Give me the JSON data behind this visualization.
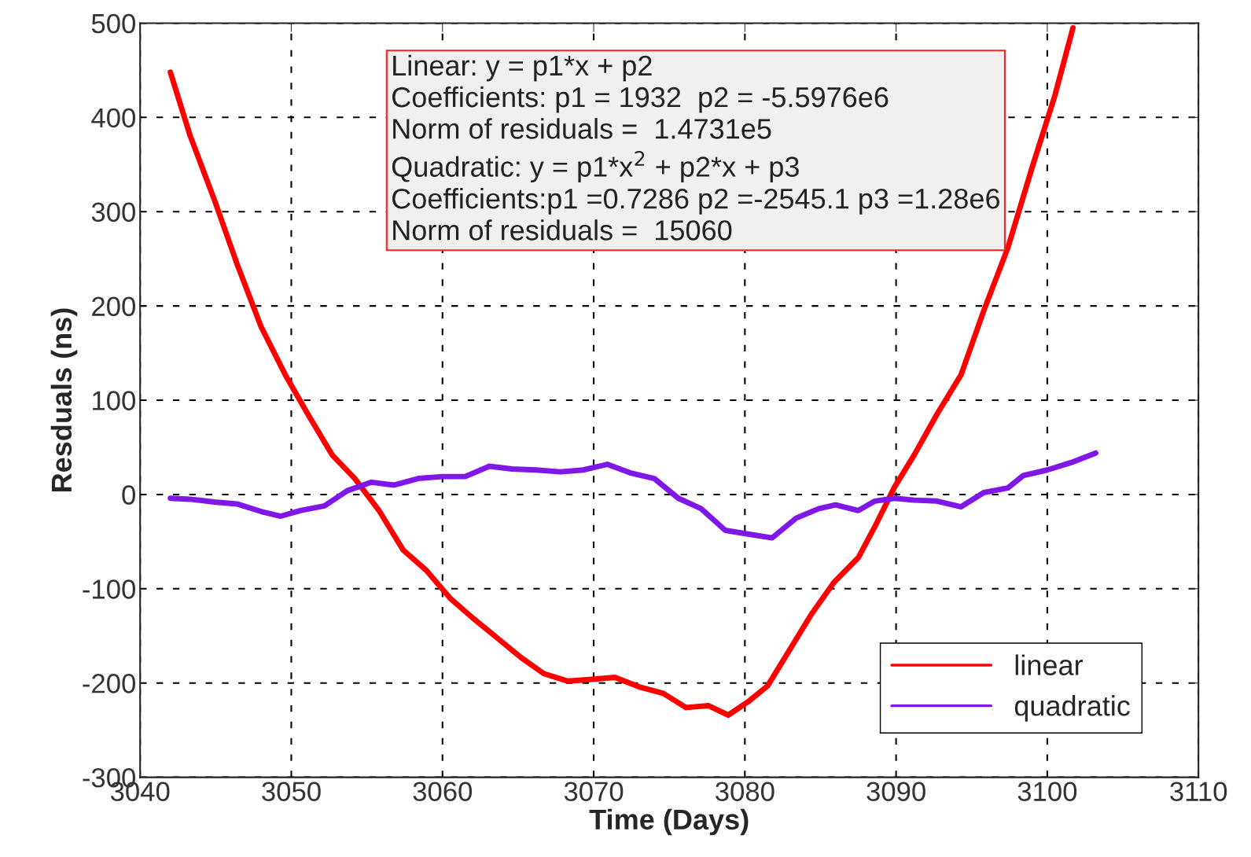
{
  "chart_data": {
    "type": "line",
    "xlabel": "Time (Days)",
    "ylabel": "Resduals (ns)",
    "xlim": [
      3040,
      3110
    ],
    "xticks": [
      3040,
      3050,
      3060,
      3070,
      3080,
      3090,
      3100,
      3110
    ],
    "ylim": [
      -300,
      500
    ],
    "yticks": [
      -300,
      -200,
      -100,
      0,
      100,
      200,
      300,
      400,
      500
    ],
    "grid": true,
    "legend": "bottom right",
    "annotations": [
      "Linear: y = p1*x + p2",
      "Coefficients: p1 = 1932  p2 = -5.5976e6",
      "Norm of residuals =  1.4731e5",
      "Quadratic: y = p1*x$^{2}$ + p2*x + p3",
      "Coefficients:p1 =0.7286 p2 =-2545.1 p3 =1.28e6",
      "Norm of residuals =  15060"
    ],
    "series": [
      {
        "name": "linear",
        "color": "#ff0000",
        "x": [
          3042.0,
          3043.3,
          3044.9,
          3046.4,
          3048.0,
          3049.6,
          3051.1,
          3052.7,
          3054.2,
          3055.8,
          3057.4,
          3058.9,
          3060.5,
          3062.0,
          3063.6,
          3065.2,
          3066.7,
          3068.3,
          3069.9,
          3071.4,
          3073.0,
          3074.6,
          3076.1,
          3077.6,
          3078.9,
          3080.2,
          3081.5,
          3082.8,
          3084.4,
          3085.9,
          3087.5,
          3088.6,
          3089.9,
          3091.2,
          3092.7,
          3094.3,
          3095.8,
          3097.4,
          3099.0,
          3100.5,
          3101.7
        ],
        "values": [
          448,
          381,
          313,
          245,
          178,
          127,
          85,
          42,
          17,
          -17,
          -59,
          -80,
          -110,
          -131,
          -152,
          -173,
          -190,
          -198,
          -196,
          -194,
          -204,
          -211,
          -226,
          -224,
          -234,
          -220,
          -203,
          -169,
          -127,
          -93,
          -67,
          -34,
          8,
          42,
          85,
          127,
          195,
          262,
          347,
          423,
          495
        ]
      },
      {
        "name": "quadratic",
        "color": "#7f17e8",
        "x": [
          3042.0,
          3043.3,
          3044.9,
          3046.4,
          3048.0,
          3049.3,
          3050.6,
          3052.2,
          3053.7,
          3055.3,
          3056.8,
          3058.4,
          3060.0,
          3061.5,
          3063.1,
          3064.6,
          3066.2,
          3067.8,
          3069.3,
          3070.9,
          3072.4,
          3074.0,
          3075.6,
          3077.1,
          3078.7,
          3080.2,
          3081.8,
          3083.4,
          3084.9,
          3086.0,
          3087.5,
          3088.6,
          3089.9,
          3091.2,
          3092.7,
          3094.3,
          3095.8,
          3097.4,
          3098.4,
          3100.0,
          3101.6,
          3103.2
        ],
        "values": [
          -4,
          -5,
          -8,
          -10,
          -18,
          -23,
          -17,
          -12,
          4,
          13,
          10,
          17,
          19,
          19,
          30,
          27,
          26,
          24,
          26,
          32,
          23,
          17,
          -4,
          -15,
          -38,
          -42,
          -46,
          -25,
          -15,
          -11,
          -17,
          -7,
          -4,
          -6,
          -7,
          -13,
          2,
          7,
          20,
          26,
          34,
          44
        ]
      }
    ]
  }
}
